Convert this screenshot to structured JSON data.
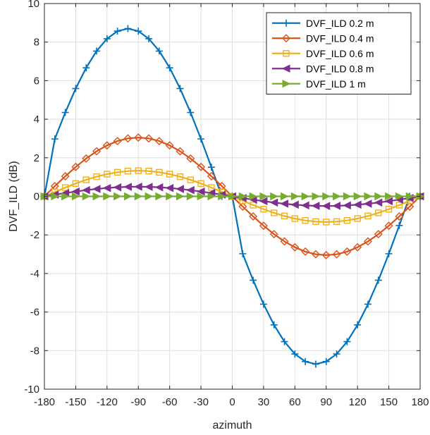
{
  "chart_data": {
    "type": "line",
    "title": "",
    "xlabel": "azimuth",
    "ylabel": "DVF_ILD (dB)",
    "xlim": [
      -180,
      180
    ],
    "ylim": [
      -10,
      10
    ],
    "xticks": [
      -180,
      -150,
      -120,
      -90,
      -60,
      -30,
      0,
      30,
      60,
      90,
      120,
      150,
      180
    ],
    "yticks": [
      -10,
      -8,
      -6,
      -4,
      -2,
      0,
      2,
      4,
      6,
      8,
      10
    ],
    "grid": true,
    "legend_position": "top-right",
    "sample_step": 10,
    "series": [
      {
        "name": "DVF_ILD 0.2 m",
        "color": "#0072BD",
        "marker": "plus",
        "amplitude": 8.7,
        "peak_azimuth": -100
      },
      {
        "name": "DVF_ILD 0.4 m",
        "color": "#D95319",
        "marker": "diamond",
        "amplitude": 3.05,
        "peak_azimuth": -90
      },
      {
        "name": "DVF_ILD 0.6 m",
        "color": "#EDB120",
        "marker": "square",
        "amplitude": 1.33,
        "peak_azimuth": -90
      },
      {
        "name": "DVF_ILD 0.8 m",
        "color": "#7E2F8E",
        "marker": "triangle-left",
        "amplitude": 0.5,
        "peak_azimuth": -90
      },
      {
        "name": "DVF_ILD 1 m",
        "color": "#77AC30",
        "marker": "triangle-right",
        "amplitude": 0.0,
        "peak_azimuth": -90
      }
    ]
  }
}
